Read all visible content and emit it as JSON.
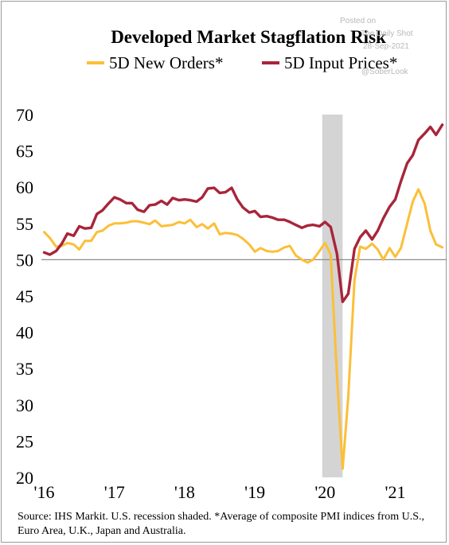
{
  "watermark": {
    "posted": "Posted on",
    "site": "The Daily Shot",
    "date": "28-Sep-2021",
    "handle": "@SoberLook"
  },
  "source_note": "Source:  IHS Markit. U.S. recession shaded. *Average of composite PMI indices from U.S., Euro Area, U.K., Japan and Australia.",
  "chart_data": {
    "type": "line",
    "title": "Developed Market Stagflation Risk",
    "xlabel": "",
    "ylabel": "",
    "ylim": [
      20,
      70
    ],
    "y_ticks": [
      20,
      25,
      30,
      35,
      40,
      45,
      50,
      55,
      60,
      65,
      70
    ],
    "x_tick_labels": [
      {
        "label": "'16",
        "t": 2016.0
      },
      {
        "label": "'17",
        "t": 2017.0
      },
      {
        "label": "'18",
        "t": 2018.0
      },
      {
        "label": "'19",
        "t": 2019.0
      },
      {
        "label": "'20",
        "t": 2020.0
      },
      {
        "label": "'21",
        "t": 2021.0
      }
    ],
    "xlim": [
      2015.96,
      2021.72
    ],
    "reference_line": 50,
    "recession_shading": {
      "start": 2019.96,
      "end": 2020.25,
      "color": "#d4d4d4"
    },
    "legend_position": "top",
    "series": [
      {
        "name": "5D New Orders*",
        "color": "#fbbf38",
        "points": [
          [
            2016.0,
            53.8
          ],
          [
            2016.08,
            53.0
          ],
          [
            2016.17,
            51.8
          ],
          [
            2016.25,
            51.9
          ],
          [
            2016.33,
            52.3
          ],
          [
            2016.42,
            52.1
          ],
          [
            2016.5,
            51.4
          ],
          [
            2016.58,
            52.6
          ],
          [
            2016.67,
            52.6
          ],
          [
            2016.75,
            53.8
          ],
          [
            2016.83,
            54.0
          ],
          [
            2016.92,
            54.7
          ],
          [
            2017.0,
            55.0
          ],
          [
            2017.08,
            55.0
          ],
          [
            2017.17,
            55.1
          ],
          [
            2017.25,
            55.3
          ],
          [
            2017.33,
            55.3
          ],
          [
            2017.42,
            55.1
          ],
          [
            2017.5,
            54.9
          ],
          [
            2017.58,
            55.4
          ],
          [
            2017.67,
            54.6
          ],
          [
            2017.75,
            54.7
          ],
          [
            2017.83,
            54.8
          ],
          [
            2017.92,
            55.2
          ],
          [
            2018.0,
            55.0
          ],
          [
            2018.08,
            55.5
          ],
          [
            2018.17,
            54.5
          ],
          [
            2018.25,
            54.9
          ],
          [
            2018.33,
            54.3
          ],
          [
            2018.42,
            55.0
          ],
          [
            2018.5,
            53.5
          ],
          [
            2018.58,
            53.7
          ],
          [
            2018.67,
            53.6
          ],
          [
            2018.75,
            53.4
          ],
          [
            2018.83,
            52.9
          ],
          [
            2018.92,
            52.1
          ],
          [
            2019.0,
            51.1
          ],
          [
            2019.08,
            51.6
          ],
          [
            2019.17,
            51.2
          ],
          [
            2019.25,
            51.1
          ],
          [
            2019.33,
            51.2
          ],
          [
            2019.42,
            51.7
          ],
          [
            2019.5,
            51.9
          ],
          [
            2019.58,
            50.6
          ],
          [
            2019.67,
            50.0
          ],
          [
            2019.75,
            49.6
          ],
          [
            2019.83,
            50.0
          ],
          [
            2019.92,
            51.2
          ],
          [
            2020.0,
            52.3
          ],
          [
            2020.08,
            50.7
          ],
          [
            2020.17,
            34.0
          ],
          [
            2020.25,
            21.2
          ],
          [
            2020.33,
            31.0
          ],
          [
            2020.42,
            47.2
          ],
          [
            2020.5,
            51.8
          ],
          [
            2020.58,
            51.5
          ],
          [
            2020.67,
            52.2
          ],
          [
            2020.75,
            51.4
          ],
          [
            2020.83,
            50.0
          ],
          [
            2020.92,
            51.6
          ],
          [
            2021.0,
            50.4
          ],
          [
            2021.08,
            51.6
          ],
          [
            2021.17,
            55.0
          ],
          [
            2021.25,
            58.0
          ],
          [
            2021.33,
            59.7
          ],
          [
            2021.42,
            57.7
          ],
          [
            2021.5,
            54.0
          ],
          [
            2021.58,
            52.1
          ],
          [
            2021.67,
            51.7
          ]
        ]
      },
      {
        "name": "5D Input Prices*",
        "color": "#a8253a",
        "points": [
          [
            2016.0,
            51.0
          ],
          [
            2016.08,
            50.7
          ],
          [
            2016.17,
            51.2
          ],
          [
            2016.25,
            52.2
          ],
          [
            2016.33,
            53.6
          ],
          [
            2016.42,
            53.3
          ],
          [
            2016.5,
            54.6
          ],
          [
            2016.58,
            54.3
          ],
          [
            2016.67,
            54.4
          ],
          [
            2016.75,
            56.3
          ],
          [
            2016.83,
            56.8
          ],
          [
            2016.92,
            57.8
          ],
          [
            2017.0,
            58.6
          ],
          [
            2017.08,
            58.3
          ],
          [
            2017.17,
            57.8
          ],
          [
            2017.25,
            57.8
          ],
          [
            2017.33,
            56.9
          ],
          [
            2017.42,
            56.6
          ],
          [
            2017.5,
            57.5
          ],
          [
            2017.58,
            57.6
          ],
          [
            2017.67,
            58.1
          ],
          [
            2017.75,
            57.6
          ],
          [
            2017.83,
            58.5
          ],
          [
            2017.92,
            58.2
          ],
          [
            2018.0,
            58.3
          ],
          [
            2018.08,
            58.2
          ],
          [
            2018.17,
            58.0
          ],
          [
            2018.25,
            58.6
          ],
          [
            2018.33,
            59.8
          ],
          [
            2018.42,
            59.9
          ],
          [
            2018.5,
            59.2
          ],
          [
            2018.58,
            59.3
          ],
          [
            2018.67,
            59.9
          ],
          [
            2018.75,
            58.3
          ],
          [
            2018.83,
            57.2
          ],
          [
            2018.92,
            56.5
          ],
          [
            2019.0,
            56.7
          ],
          [
            2019.08,
            55.9
          ],
          [
            2019.17,
            56.0
          ],
          [
            2019.25,
            55.8
          ],
          [
            2019.33,
            55.5
          ],
          [
            2019.42,
            55.5
          ],
          [
            2019.5,
            55.2
          ],
          [
            2019.58,
            54.8
          ],
          [
            2019.67,
            54.4
          ],
          [
            2019.75,
            54.7
          ],
          [
            2019.83,
            54.8
          ],
          [
            2019.92,
            54.6
          ],
          [
            2020.0,
            55.2
          ],
          [
            2020.08,
            54.5
          ],
          [
            2020.17,
            50.8
          ],
          [
            2020.25,
            44.2
          ],
          [
            2020.33,
            45.3
          ],
          [
            2020.42,
            51.5
          ],
          [
            2020.5,
            53.1
          ],
          [
            2020.58,
            54.0
          ],
          [
            2020.67,
            52.8
          ],
          [
            2020.75,
            54.0
          ],
          [
            2020.83,
            55.7
          ],
          [
            2020.92,
            57.3
          ],
          [
            2021.0,
            58.3
          ],
          [
            2021.08,
            60.8
          ],
          [
            2021.17,
            63.3
          ],
          [
            2021.25,
            64.4
          ],
          [
            2021.33,
            66.5
          ],
          [
            2021.42,
            67.4
          ],
          [
            2021.5,
            68.3
          ],
          [
            2021.58,
            67.2
          ],
          [
            2021.67,
            68.6
          ]
        ]
      }
    ]
  }
}
